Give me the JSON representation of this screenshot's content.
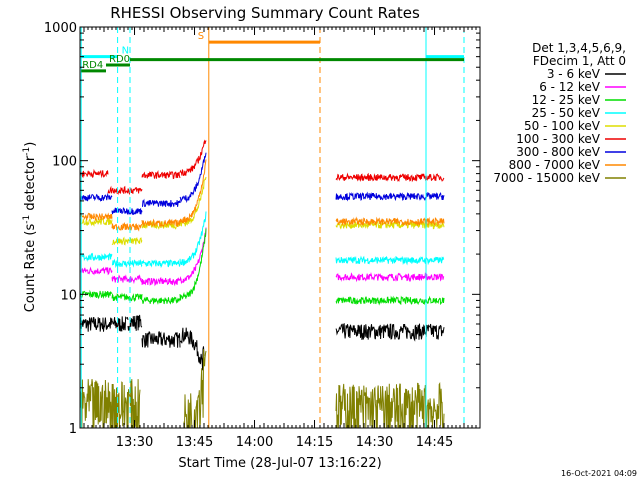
{
  "chart_data": {
    "type": "line",
    "title": "RHESSI Observing Summary Count Rates",
    "xlabel": "Start Time (28-Jul-07 13:16:22)",
    "ylabel_parts": [
      "Count Rate (s",
      "-1",
      " detector",
      "-1",
      ")"
    ],
    "yscale": "log",
    "ylim": [
      1,
      1000
    ],
    "xlim_minutes": [
      0,
      100
    ],
    "x_ticks": [
      {
        "minute": 13.63,
        "label": "13:30"
      },
      {
        "minute": 28.63,
        "label": "13:45"
      },
      {
        "minute": 43.63,
        "label": "14:00"
      },
      {
        "minute": 58.63,
        "label": "14:15"
      },
      {
        "minute": 73.63,
        "label": "14:30"
      },
      {
        "minute": 88.63,
        "label": "14:45"
      }
    ],
    "y_ticks": [
      {
        "value": 1,
        "label": "1"
      },
      {
        "value": 10,
        "label": "10"
      },
      {
        "value": 100,
        "label": "100"
      },
      {
        "value": 1000,
        "label": "1000"
      }
    ],
    "legend": {
      "placement": "right",
      "header": [
        "Det 1,3,4,5,6,9,",
        "FDecim 1, Att 0"
      ]
    },
    "series": [
      {
        "name": "3 - 6 keV",
        "color": "#000000",
        "segments": [
          {
            "from": 0,
            "to": 12,
            "base": 6.0
          },
          {
            "from": 12,
            "to": 15.5,
            "base": 6.2
          },
          {
            "from": 15.5,
            "to": 25,
            "base": 4.6
          },
          {
            "from": 25,
            "to": 31,
            "base": 5.0,
            "to_base": 2.6
          }
        ],
        "segments_late": [
          {
            "from": 64,
            "to": 91,
            "base": 5.3
          }
        ]
      },
      {
        "name": "6 - 12 keV",
        "color": "#ff00ff",
        "segments": [
          {
            "from": 0,
            "to": 8,
            "base": 15.0
          },
          {
            "from": 8,
            "to": 15.5,
            "base": 13.0
          },
          {
            "from": 15.5,
            "to": 25,
            "base": 12.5
          },
          {
            "from": 25,
            "to": 31.5,
            "base": 13.0,
            "to_base": 30
          }
        ],
        "segments_late": [
          {
            "from": 64,
            "to": 91,
            "base": 13.5
          }
        ]
      },
      {
        "name": "12 - 25 keV",
        "color": "#00dd00",
        "segments": [
          {
            "from": 0,
            "to": 8,
            "base": 10.0
          },
          {
            "from": 8,
            "to": 15.5,
            "base": 9.5
          },
          {
            "from": 15.5,
            "to": 25,
            "base": 9.0
          },
          {
            "from": 25,
            "to": 31.5,
            "base": 9.5,
            "to_base": 30
          }
        ],
        "segments_late": [
          {
            "from": 64,
            "to": 91,
            "base": 9.0
          }
        ]
      },
      {
        "name": "25 - 50 keV",
        "color": "#00ffff",
        "segments": [
          {
            "from": 0,
            "to": 8,
            "base": 19.0
          },
          {
            "from": 8,
            "to": 15.5,
            "base": 17.0
          },
          {
            "from": 15.5,
            "to": 25,
            "base": 17.0
          },
          {
            "from": 25,
            "to": 31.5,
            "base": 17.5,
            "to_base": 40
          }
        ],
        "segments_late": [
          {
            "from": 64,
            "to": 91,
            "base": 18.0
          }
        ]
      },
      {
        "name": "50 - 100 keV",
        "color": "#dddd00",
        "segments": [
          {
            "from": 0,
            "to": 8,
            "base": 35.0
          },
          {
            "from": 8,
            "to": 15.5,
            "base": 25.0
          },
          {
            "from": 15.5,
            "to": 25,
            "base": 33.0
          },
          {
            "from": 25,
            "to": 31.5,
            "base": 34.0,
            "to_base": 80
          }
        ],
        "segments_late": [
          {
            "from": 64,
            "to": 91,
            "base": 33.0
          }
        ]
      },
      {
        "name": "100 - 300 keV",
        "color": "#ee0000",
        "segments": [
          {
            "from": 0,
            "to": 7,
            "base": 80.0
          },
          {
            "from": 7,
            "to": 15.5,
            "base": 60.0
          },
          {
            "from": 15.5,
            "to": 25,
            "base": 78.0
          },
          {
            "from": 25,
            "to": 31.5,
            "base": 82.0,
            "to_base": 150
          }
        ],
        "segments_late": [
          {
            "from": 64,
            "to": 91,
            "base": 75.0
          }
        ]
      },
      {
        "name": "300 - 800 keV",
        "color": "#0000dd",
        "segments": [
          {
            "from": 0,
            "to": 8,
            "base": 53.0
          },
          {
            "from": 8,
            "to": 15.5,
            "base": 42.0
          },
          {
            "from": 15.5,
            "to": 25,
            "base": 48.0
          },
          {
            "from": 25,
            "to": 31.5,
            "base": 52.0,
            "to_base": 120
          }
        ],
        "segments_late": [
          {
            "from": 64,
            "to": 91,
            "base": 54.0
          }
        ]
      },
      {
        "name": "800 - 7000 keV",
        "color": "#ff8800",
        "segments": [
          {
            "from": 0,
            "to": 8,
            "base": 38.0
          },
          {
            "from": 8,
            "to": 15.5,
            "base": 32.0
          },
          {
            "from": 15.5,
            "to": 25,
            "base": 34.0
          },
          {
            "from": 25,
            "to": 31.5,
            "base": 36.0,
            "to_base": 100
          }
        ],
        "segments_late": [
          {
            "from": 64,
            "to": 91,
            "base": 35.0
          }
        ]
      },
      {
        "name": "7000 - 15000 keV",
        "color": "#808000",
        "segments": [
          {
            "from": 0,
            "to": 15,
            "base": 1.5
          },
          {
            "from": 26,
            "to": 31.5,
            "base": 1.2,
            "to_base": 4.0
          }
        ],
        "segments_late": [
          {
            "from": 64,
            "to": 91,
            "base": 1.4
          }
        ]
      }
    ],
    "vlines": [
      {
        "minute": 0.3,
        "color": "#00ffff",
        "dash": false
      },
      {
        "minute": 9.4,
        "color": "#00ffff",
        "dash": true
      },
      {
        "minute": 12.5,
        "color": "#00ffff",
        "dash": true
      },
      {
        "minute": 32.2,
        "color": "#ff8800",
        "dash": false
      },
      {
        "minute": 60.0,
        "color": "#ff8800",
        "dash": true
      },
      {
        "minute": 86.5,
        "color": "#00ffff",
        "dash": false
      },
      {
        "minute": 96.0,
        "color": "#00ffff",
        "dash": true
      }
    ],
    "flag_bars": [
      {
        "label": "N",
        "color": "#00ffff",
        "from": 0.3,
        "to": 9.4,
        "value": 600
      },
      {
        "label": "",
        "color": "#00ffff",
        "from": 86.5,
        "to": 96.0,
        "value": 600
      },
      {
        "label": "S",
        "color": "#ff8800",
        "from": 32.2,
        "to": 60.0,
        "value": 770
      },
      {
        "label": "RD0",
        "color": "#008800",
        "from": 6.5,
        "to": 12.5,
        "value": 520
      },
      {
        "label": "RD4",
        "color": "#008800",
        "from": 0.3,
        "to": 6.5,
        "value": 470
      },
      {
        "label": "",
        "color": "#008800",
        "from": 12.5,
        "to": 96.0,
        "value": 570
      }
    ]
  },
  "footer_timestamp": "16-Oct-2021 04:09"
}
